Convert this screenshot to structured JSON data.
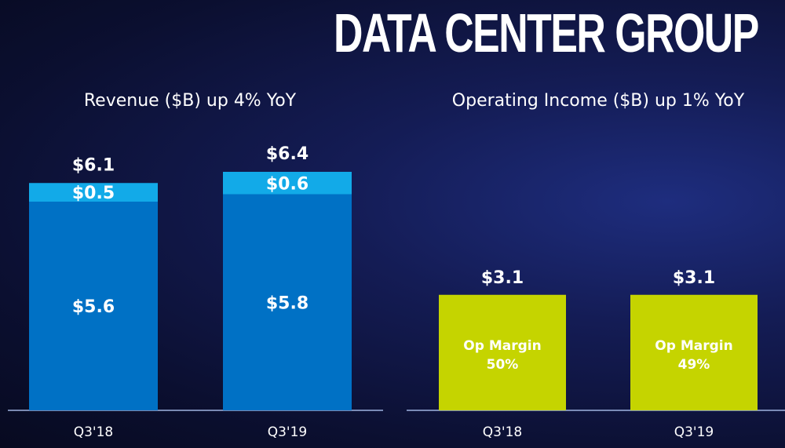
{
  "page": {
    "title": "DATA CENTER GROUP"
  },
  "colors": {
    "revenue_lower": "#0071c5",
    "revenue_upper": "#12aae8",
    "income": "#c5d400",
    "axis": "#9fb3e0",
    "text": "#ffffff"
  },
  "chart_data": [
    {
      "type": "bar",
      "stacked": true,
      "title": "Revenue ($B) up 4% YoY",
      "categories": [
        "Q3'18",
        "Q3'19"
      ],
      "series": [
        {
          "name": "lower",
          "values": [
            5.6,
            5.8
          ],
          "labels": [
            "$5.6",
            "$5.8"
          ]
        },
        {
          "name": "upper",
          "values": [
            0.5,
            0.6
          ],
          "labels": [
            "$0.5",
            "$0.6"
          ]
        }
      ],
      "totals": [
        6.1,
        6.4
      ],
      "total_labels": [
        "$6.1",
        "$6.4"
      ],
      "ylim": [
        0,
        8
      ]
    },
    {
      "type": "bar",
      "title": "Operating Income ($B) up 1% YoY",
      "categories": [
        "Q3'18",
        "Q3'19"
      ],
      "values": [
        3.1,
        3.1
      ],
      "value_labels": [
        "$3.1",
        "$3.1"
      ],
      "bar_text": [
        [
          "Op Margin",
          "50%"
        ],
        [
          "Op Margin",
          "49%"
        ]
      ],
      "ylim": [
        0,
        8
      ]
    }
  ]
}
